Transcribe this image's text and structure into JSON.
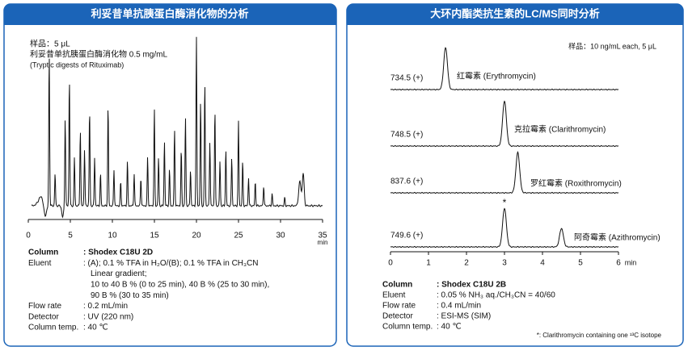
{
  "left": {
    "title": "利妥昔单抗胰蛋白酶消化物的分析",
    "sample_lines": [
      "样品：5 μL",
      "利妥昔单抗胰蛋白酶消化物 0.5 mg/mL",
      "(Tryptic digests of Rituximab)"
    ],
    "x_ticks": [
      0,
      5,
      10,
      15,
      20,
      25,
      30,
      35
    ],
    "x_unit": "min",
    "specs": [
      {
        "label": "Column",
        "value": ": Shodex C18U 2D"
      },
      {
        "label": "Eluent",
        "value": ": (A); 0.1 % TFA in H₂O/(B); 0.1 % TFA in CH₃CN"
      },
      {
        "value": "Linear gradient;"
      },
      {
        "value": "10 to 40 B % (0 to 25 min), 40 B % (25 to 30 min),"
      },
      {
        "value": "90 B % (30 to 35 min)"
      },
      {
        "label": "Flow rate",
        "value": ": 0.2 mL/min"
      },
      {
        "label": "Detector",
        "value": ": UV (220 nm)"
      },
      {
        "label": "Column temp.",
        "value": ": 40 ℃"
      }
    ]
  },
  "right": {
    "title": "大环内酯类抗生素的LC/MS同时分析",
    "sample": "样品：10 ng/mL each, 5 μL",
    "traces": [
      {
        "mz": "734.5 (+)",
        "compound": "红霉素 (Erythromycin)"
      },
      {
        "mz": "748.5 (+)",
        "compound": "克拉霉素 (Clarithromycin)"
      },
      {
        "mz": "837.6 (+)",
        "compound": "罗红霉素 (Roxithromycin)"
      },
      {
        "mz": "749.6 (+)",
        "compound": "阿奇霉素 (Azithromycin)"
      }
    ],
    "star": "*",
    "x_ticks": [
      0,
      1,
      2,
      3,
      4,
      5,
      6
    ],
    "x_unit": "min",
    "specs": [
      {
        "label": "Column",
        "value": ": Shodex C18U 2B"
      },
      {
        "label": "Eluent",
        "value": ": 0.05 % NH₃ aq./CH₃CN = 40/60"
      },
      {
        "label": "Flow rate",
        "value": ": 0.4 mL/min"
      },
      {
        "label": "Detector",
        "value": ": ESI-MS (SIM)"
      },
      {
        "label": "Column temp.",
        "value": ": 40 ℃"
      }
    ],
    "footnote": "*: Clarithromycin containing one ¹³C isotope"
  }
}
